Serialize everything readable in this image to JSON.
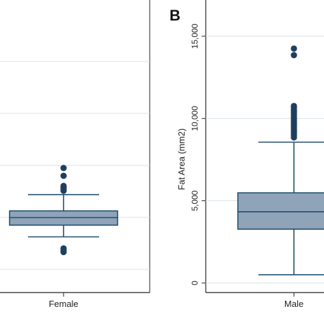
{
  "chart_data": [
    {
      "type": "box",
      "panel_label": "",
      "categories": [
        "Female"
      ],
      "yticks": [],
      "ylabel": "",
      "grid": true,
      "colors": {
        "box": "#8fa3b9",
        "line": "#1f4e6e",
        "outlier": "#1f3f5e"
      },
      "boxes": [
        {
          "category": "Female",
          "whisker_low": 3500,
          "q1": 4400,
          "median": 4980,
          "q3": 5500,
          "whisker_high": 6750,
          "outliers": [
            2330,
            2460,
            2610,
            7050,
            7180,
            7300,
            7420,
            8200,
            8800
          ]
        }
      ]
    },
    {
      "type": "box",
      "panel_label": "B",
      "categories": [
        "Male"
      ],
      "ylabel": "Fat Area (mm2)",
      "ylim": [
        0,
        15000
      ],
      "yticks": [
        {
          "value": 0,
          "label": "0"
        },
        {
          "value": 5000,
          "label": "5,000"
        },
        {
          "value": 10000,
          "label": "10,000"
        },
        {
          "value": 15000,
          "label": "15,000"
        }
      ],
      "grid": true,
      "colors": {
        "box": "#8fa3b9",
        "line": "#1f4e6e",
        "outlier": "#1f3f5e"
      },
      "boxes": [
        {
          "category": "Male",
          "whisker_low": 500,
          "q1": 3270,
          "median": 4330,
          "q3": 5480,
          "whisker_high": 8560,
          "outliers": [
            8850,
            8980,
            9100,
            9220,
            9350,
            9480,
            9600,
            9720,
            9850,
            9980,
            10100,
            10230,
            10380,
            10500,
            10640,
            10760,
            13850,
            14250
          ]
        }
      ]
    }
  ]
}
